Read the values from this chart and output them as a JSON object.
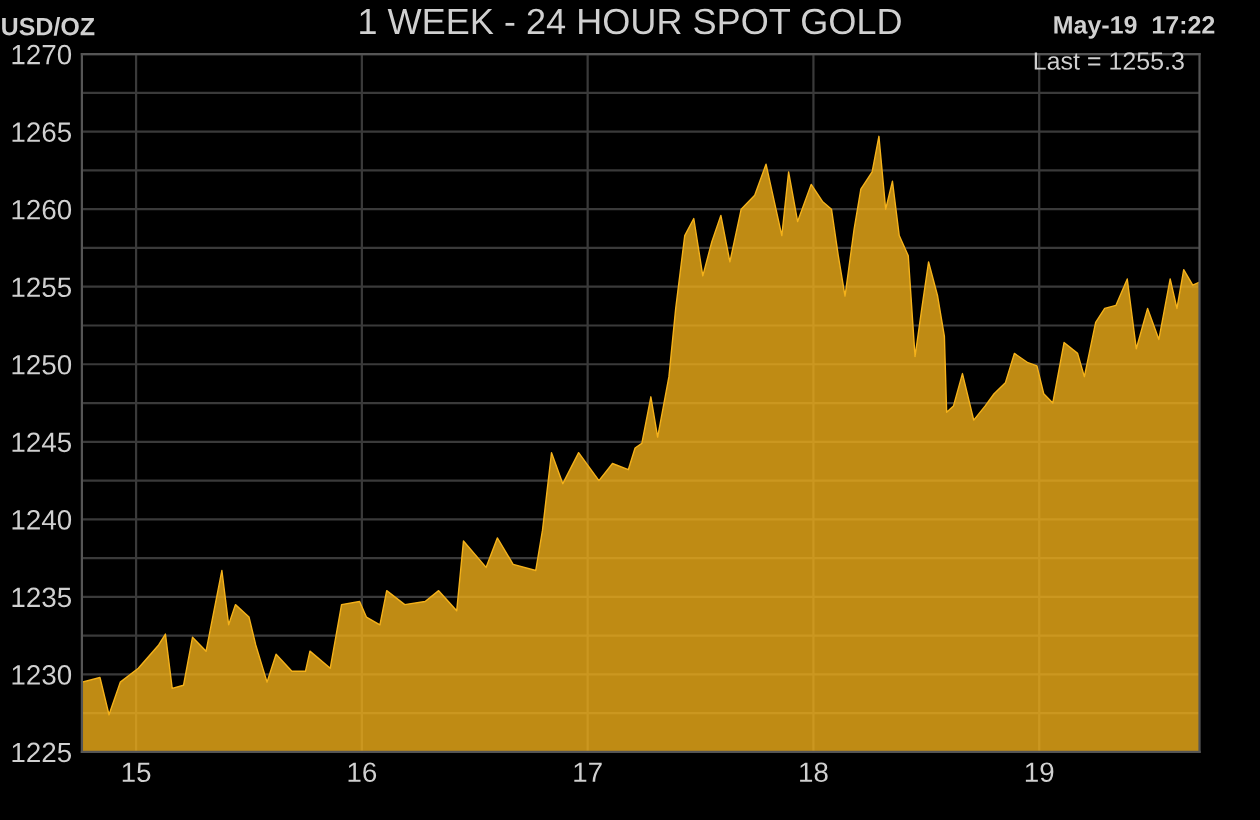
{
  "chart_data": {
    "type": "area",
    "title": "1 WEEK - 24 HOUR SPOT GOLD",
    "ylabel": "USD/OZ",
    "annotations": [
      "May-19  17:22",
      "Last = 1255.3"
    ],
    "series": [
      {
        "color": "#f5b21a",
        "x": [
          14.76,
          14.84,
          14.88,
          14.93,
          15.01,
          15.1,
          15.13,
          15.16,
          15.21,
          15.25,
          15.31,
          15.38,
          15.41,
          15.44,
          15.5,
          15.53,
          15.58,
          15.62,
          15.69,
          15.75,
          15.77,
          15.86,
          15.91,
          15.99,
          16.02,
          16.08,
          16.11,
          16.19,
          16.28,
          16.34,
          16.42,
          16.45,
          16.55,
          16.6,
          16.67,
          16.77,
          16.8,
          16.84,
          16.89,
          16.96,
          17.05,
          17.11,
          17.18,
          17.21,
          17.24,
          17.28,
          17.31,
          17.36,
          17.39,
          17.43,
          17.47,
          17.51,
          17.55,
          17.59,
          17.63,
          17.68,
          17.74,
          17.79,
          17.86,
          17.89,
          17.93,
          17.99,
          18.04,
          18.08,
          18.11,
          18.14,
          18.18,
          18.21,
          18.26,
          18.29,
          18.32,
          18.35,
          18.38,
          18.42,
          18.45,
          18.48,
          18.51,
          18.55,
          18.58,
          18.59,
          18.62,
          18.66,
          18.71,
          18.76,
          18.8,
          18.85,
          18.89,
          18.95,
          18.99,
          19.02,
          19.06,
          19.11,
          19.17,
          19.2,
          19.25,
          19.29,
          19.34,
          19.39,
          19.43,
          19.48,
          19.53,
          19.58,
          19.61,
          19.64,
          19.68,
          19.71
        ],
        "values": [
          1229.5,
          1229.8,
          1227.4,
          1229.5,
          1230.4,
          1231.9,
          1232.6,
          1229.1,
          1229.3,
          1232.4,
          1231.5,
          1236.7,
          1233.2,
          1234.5,
          1233.7,
          1231.9,
          1229.5,
          1231.3,
          1230.2,
          1230.2,
          1231.5,
          1230.4,
          1234.5,
          1234.7,
          1233.7,
          1233.2,
          1235.4,
          1234.5,
          1234.7,
          1235.4,
          1234.1,
          1238.6,
          1236.9,
          1238.8,
          1237.1,
          1236.7,
          1239.3,
          1244.3,
          1242.3,
          1244.3,
          1242.5,
          1243.6,
          1243.2,
          1244.6,
          1244.9,
          1247.9,
          1245.3,
          1249.2,
          1253.6,
          1258.3,
          1259.4,
          1255.7,
          1257.9,
          1259.6,
          1256.6,
          1260.0,
          1260.9,
          1262.9,
          1258.3,
          1262.4,
          1259.2,
          1261.6,
          1260.5,
          1260.0,
          1257.0,
          1254.4,
          1258.7,
          1261.3,
          1262.4,
          1264.7,
          1260.0,
          1261.8,
          1258.3,
          1257.0,
          1250.5,
          1253.6,
          1256.6,
          1254.4,
          1251.8,
          1246.9,
          1247.3,
          1249.4,
          1246.4,
          1247.3,
          1248.1,
          1248.8,
          1250.7,
          1250.1,
          1249.9,
          1248.1,
          1247.5,
          1251.4,
          1250.7,
          1249.2,
          1252.7,
          1253.6,
          1253.8,
          1255.5,
          1251.0,
          1253.6,
          1251.6,
          1255.5,
          1253.6,
          1256.1,
          1255.1,
          1255.3
        ]
      }
    ],
    "xlim": [
      14.76,
      19.71
    ],
    "xticks": [
      15,
      16,
      17,
      18,
      19
    ],
    "ylim": [
      1225,
      1270
    ],
    "yticks": [
      1225,
      {
        "value": 1227.5,
        "label": null
      },
      1230,
      {
        "value": 1232.5,
        "label": null
      },
      1235,
      {
        "value": 1237.5,
        "label": null
      },
      1240,
      {
        "value": 1242.5,
        "label": null
      },
      1245,
      {
        "value": 1247.5,
        "label": null
      },
      1250,
      {
        "value": 1252.5,
        "label": null
      },
      1255,
      {
        "value": 1257.5,
        "label": null
      },
      1260,
      {
        "value": 1262.5,
        "label": null
      },
      1265,
      {
        "value": 1267.5,
        "label": null
      },
      1270
    ],
    "grid": true,
    "legend": false
  }
}
